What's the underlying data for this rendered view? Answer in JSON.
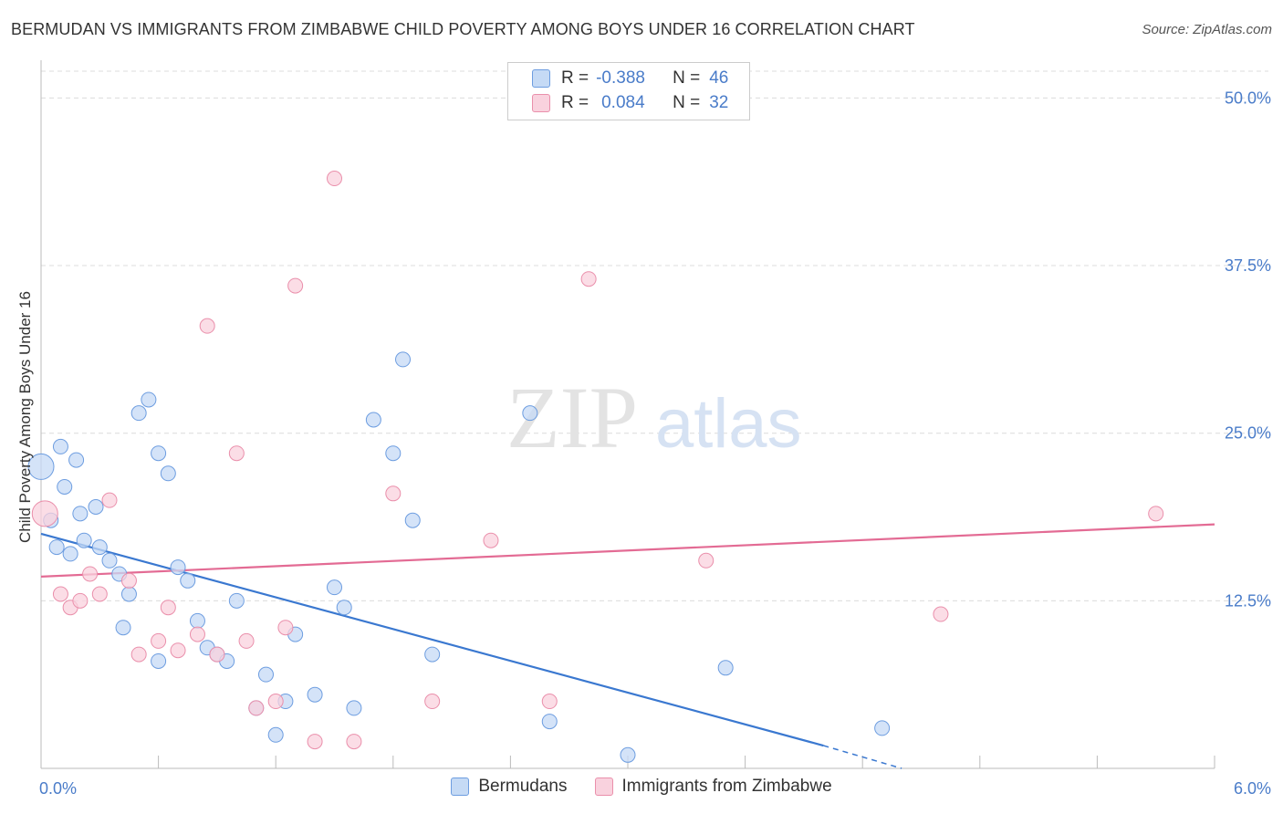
{
  "header": {
    "title": "BERMUDAN VS IMMIGRANTS FROM ZIMBABWE CHILD POVERTY AMONG BOYS UNDER 16 CORRELATION CHART",
    "source": "Source: ZipAtlas.com"
  },
  "watermark": {
    "zip": "ZIP",
    "atlas": "atlas"
  },
  "legend": {
    "rows": [
      {
        "r_label": "R =",
        "r_value": "-0.388",
        "n_label": "N =",
        "n_value": "46",
        "color": "#a9c7ee",
        "stroke": "#6d9de0"
      },
      {
        "r_label": "R =",
        "r_value": "0.084",
        "n_label": "N =",
        "n_value": "32",
        "color": "#f6bfcf",
        "stroke": "#ea8fab"
      }
    ]
  },
  "bottom_legend": [
    "Bermudans",
    "Immigrants from Zimbabwe"
  ],
  "chart_data": {
    "type": "scatter",
    "title": "BERMUDAN VS IMMIGRANTS FROM ZIMBABWE CHILD POVERTY AMONG BOYS UNDER 16 CORRELATION CHART",
    "xlabel": "",
    "ylabel": "Child Poverty Among Boys Under 16",
    "xlim": [
      0,
      6
    ],
    "ylim": [
      0,
      52
    ],
    "x_tick_labels": [
      "0.0%",
      "6.0%"
    ],
    "y_ticks": [
      12.5,
      25.0,
      37.5,
      50.0
    ],
    "y_tick_labels": [
      "12.5%",
      "25.0%",
      "37.5%",
      "50.0%"
    ],
    "grid": true,
    "series": [
      {
        "name": "Bermudans",
        "color": "#6d9de0",
        "fill": "#c5daf5",
        "line_color": "#3a78d0",
        "trend": {
          "x0": 0.0,
          "y0": 17.5,
          "x1": 4.0,
          "y1": 1.7,
          "dash_to_x": 4.4,
          "dash_to_y": 0.0
        },
        "points": [
          [
            0.0,
            22.5
          ],
          [
            0.05,
            18.5
          ],
          [
            0.1,
            24.0
          ],
          [
            0.12,
            21.0
          ],
          [
            0.18,
            23.0
          ],
          [
            0.2,
            19.0
          ],
          [
            0.22,
            17.0
          ],
          [
            0.28,
            19.5
          ],
          [
            0.3,
            16.5
          ],
          [
            0.35,
            15.5
          ],
          [
            0.4,
            14.5
          ],
          [
            0.45,
            13.0
          ],
          [
            0.5,
            26.5
          ],
          [
            0.55,
            27.5
          ],
          [
            0.6,
            23.5
          ],
          [
            0.65,
            22.0
          ],
          [
            0.7,
            15.0
          ],
          [
            0.75,
            14.0
          ],
          [
            0.8,
            11.0
          ],
          [
            0.85,
            9.0
          ],
          [
            0.9,
            8.5
          ],
          [
            0.95,
            8.0
          ],
          [
            1.0,
            12.5
          ],
          [
            1.1,
            4.5
          ],
          [
            1.15,
            7.0
          ],
          [
            1.2,
            2.5
          ],
          [
            1.25,
            5.0
          ],
          [
            1.3,
            10.0
          ],
          [
            1.4,
            5.5
          ],
          [
            1.5,
            13.5
          ],
          [
            1.55,
            12.0
          ],
          [
            1.6,
            4.5
          ],
          [
            1.7,
            26.0
          ],
          [
            1.8,
            23.5
          ],
          [
            1.85,
            30.5
          ],
          [
            1.9,
            18.5
          ],
          [
            2.0,
            8.5
          ],
          [
            2.5,
            26.5
          ],
          [
            2.6,
            3.5
          ],
          [
            3.0,
            1.0
          ],
          [
            3.5,
            7.5
          ],
          [
            4.3,
            3.0
          ],
          [
            0.08,
            16.5
          ],
          [
            0.15,
            16.0
          ],
          [
            0.42,
            10.5
          ],
          [
            0.6,
            8.0
          ]
        ]
      },
      {
        "name": "Immigrants from Zimbabwe",
        "color": "#ea8fab",
        "fill": "#f9d2de",
        "line_color": "#e36b94",
        "trend": {
          "x0": 0.0,
          "y0": 14.3,
          "x1": 6.0,
          "y1": 18.2
        },
        "points": [
          [
            0.02,
            19.0
          ],
          [
            0.1,
            13.0
          ],
          [
            0.15,
            12.0
          ],
          [
            0.25,
            14.5
          ],
          [
            0.3,
            13.0
          ],
          [
            0.35,
            20.0
          ],
          [
            0.45,
            14.0
          ],
          [
            0.5,
            8.5
          ],
          [
            0.6,
            9.5
          ],
          [
            0.65,
            12.0
          ],
          [
            0.7,
            8.8
          ],
          [
            0.8,
            10.0
          ],
          [
            0.85,
            33.0
          ],
          [
            0.9,
            8.5
          ],
          [
            1.0,
            23.5
          ],
          [
            1.05,
            9.5
          ],
          [
            1.1,
            4.5
          ],
          [
            1.2,
            5.0
          ],
          [
            1.25,
            10.5
          ],
          [
            1.3,
            36.0
          ],
          [
            1.4,
            2.0
          ],
          [
            1.5,
            44.0
          ],
          [
            1.6,
            2.0
          ],
          [
            1.8,
            20.5
          ],
          [
            2.0,
            5.0
          ],
          [
            2.3,
            17.0
          ],
          [
            2.6,
            5.0
          ],
          [
            2.8,
            36.5
          ],
          [
            3.4,
            15.5
          ],
          [
            4.6,
            11.5
          ],
          [
            5.7,
            19.0
          ],
          [
            0.2,
            12.5
          ]
        ]
      }
    ]
  }
}
